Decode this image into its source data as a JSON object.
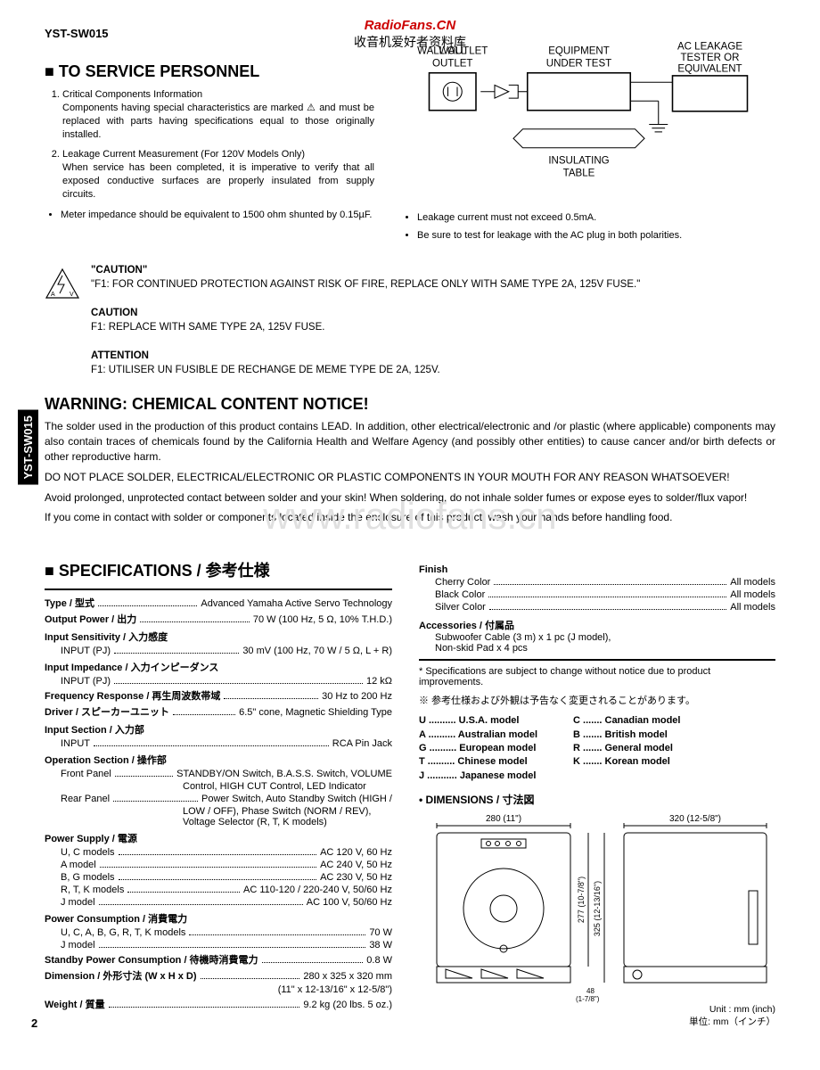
{
  "header": {
    "model": "YST-SW015",
    "brand_red": "RadioFans.CN",
    "brand_cn": "收音机爱好者资料库"
  },
  "side_tab": "YST-SW015",
  "section1": {
    "title": "TO SERVICE PERSONNEL",
    "items": [
      "Critical Components Information\nComponents having special characteristics are marked ⚠ and must be replaced with parts having specifications equal to those originally installed.",
      "Leakage Current Measurement (For 120V Models Only)\nWhen service has been completed, it is imperative to verify that all exposed conductive surfaces are properly insulated from supply circuits."
    ],
    "left_bullets": [
      "Meter impedance should be equivalent to 1500 ohm shunted by 0.15µF."
    ],
    "right_bullets": [
      "Leakage current must not exceed 0.5mA.",
      "Be sure to test for leakage with the AC plug in both polarities."
    ],
    "diagram": {
      "wall_outlet": "WALL\nOUTLET",
      "equipment": "EQUIPMENT\nUNDER TEST",
      "tester": "AC LEAKAGE\nTESTER OR\nEQUIVALENT",
      "table": "INSULATING\nTABLE"
    }
  },
  "caution": {
    "h1": "\"CAUTION\"",
    "l1": "\"F1: FOR CONTINUED PROTECTION AGAINST RISK OF FIRE, REPLACE ONLY WITH SAME TYPE 2A, 125V FUSE.\"",
    "h2": "CAUTION",
    "l2": "F1: REPLACE WITH SAME TYPE 2A, 125V FUSE.",
    "h3": "ATTENTION",
    "l3": "F1: UTILISER UN FUSIBLE DE RECHANGE DE MEME TYPE DE 2A, 125V."
  },
  "warning": {
    "title": "WARNING: CHEMICAL CONTENT NOTICE!",
    "p1": "The solder used in the production of this product contains LEAD.  In addition, other electrical/electronic and /or plastic (where applicable) components may also contain traces of chemicals found by the California Health and Welfare Agency (and possibly other entities) to cause cancer and/or birth defects or other reproductive harm.",
    "p2": "DO NOT PLACE SOLDER, ELECTRICAL/ELECTRONIC OR PLASTIC COMPONENTS IN YOUR MOUTH FOR ANY REASON WHATSOEVER!",
    "p3": "Avoid prolonged, unprotected contact between solder and your skin!  When soldering, do not inhale solder fumes or expose eyes to solder/flux vapor!",
    "p4": "If you come in contact with solder or components located inside the enclosure of this product, wash your hands before handling food."
  },
  "watermark": "www.radiofans.cn",
  "specs": {
    "title": "SPECIFICATIONS / 参考仕様",
    "left": [
      {
        "head": "Type / 型式",
        "value": "Advanced Yamaha Active Servo Technology"
      },
      {
        "head": "Output Power / 出力",
        "value": "70 W (100 Hz, 5 Ω, 10% T.H.D.)"
      },
      {
        "head": "Input Sensitivity / 入力感度"
      },
      {
        "sub": "INPUT (PJ)",
        "value": "30 mV (100 Hz, 70 W / 5 Ω, L + R)"
      },
      {
        "head": "Input Impedance / 入力インピーダンス"
      },
      {
        "sub": "INPUT (PJ)",
        "value": "12 kΩ"
      },
      {
        "head": "Frequency Response / 再生周波数帯域",
        "value": "30 Hz to 200 Hz"
      },
      {
        "head": "Driver / スピーカーユニット",
        "value": "6.5\" cone, Magnetic Shielding Type"
      },
      {
        "head": "Input Section / 入力部"
      },
      {
        "sub": "INPUT",
        "value": "RCA Pin Jack"
      },
      {
        "head": "Operation Section / 操作部"
      },
      {
        "sub": "Front Panel",
        "value": "STANDBY/ON Switch, B.A.S.S. Switch, VOLUME"
      },
      {
        "cont": "Control, HIGH CUT Control, LED Indicator"
      },
      {
        "sub": "Rear Panel",
        "value": "Power Switch, Auto Standby Switch (HIGH /"
      },
      {
        "cont": "LOW / OFF), Phase Switch (NORM / REV),"
      },
      {
        "cont": "Voltage Selector (R, T, K models)"
      },
      {
        "head": "Power Supply / 電源"
      },
      {
        "sub": "U, C models",
        "value": "AC 120 V, 60 Hz"
      },
      {
        "sub": "A model",
        "value": "AC 240 V, 50 Hz"
      },
      {
        "sub": "B, G models",
        "value": "AC 230 V, 50 Hz"
      },
      {
        "sub": "R, T, K models",
        "value": "AC 110-120 / 220-240 V, 50/60 Hz"
      },
      {
        "sub": "J model",
        "value": "AC 100 V, 50/60 Hz"
      },
      {
        "head": "Power Consumption / 消費電力"
      },
      {
        "sub": "U, C, A, B, G, R, T, K models",
        "value": "70 W"
      },
      {
        "sub": "J model",
        "value": "38 W"
      },
      {
        "head": "Standby Power Consumption / 待機時消費電力",
        "value": "0.8 W"
      },
      {
        "head": "Dimension / 外形寸法 (W x H x D)",
        "value": "280 x 325 x 320 mm"
      },
      {
        "cont2": "(11\" x 12-13/16\" x 12-5/8\")"
      },
      {
        "head": "Weight / 質量",
        "value": "9.2 kg (20 lbs. 5 oz.)"
      }
    ],
    "right": {
      "finish_head": "Finish",
      "finish": [
        {
          "label": "Cherry Color",
          "value": "All models"
        },
        {
          "label": "Black Color",
          "value": "All models"
        },
        {
          "label": "Silver Color",
          "value": "All models"
        }
      ],
      "acc_head": "Accessories / 付属品",
      "acc": [
        "Subwoofer Cable (3 m) x 1 pc (J model),",
        "Non-skid Pad x 4 pcs"
      ],
      "note_en": "* Specifications are subject to change without notice due to product improvements.",
      "note_jp": "※ 参考仕様および外観は予告なく変更されることがあります。",
      "codes_l": [
        "U .......... U.S.A. model",
        "A .......... Australian model",
        "G .......... European model",
        "T .......... Chinese model",
        "J ........... Japanese model"
      ],
      "codes_r": [
        "C ....... Canadian model",
        "B ....... British model",
        "R ....... General model",
        "K ....... Korean model"
      ],
      "dim_title": "• DIMENSIONS / 寸法図",
      "dim": {
        "w": "280 (11\")",
        "d": "320 (12-5/8\")",
        "h1": "277 (10-7/8\")",
        "h2": "325 (12-13/16\")",
        "h3": "48\n(1-7/8\")"
      },
      "unit_en": "Unit : mm (inch)",
      "unit_jp": "単位: mm（インチ）"
    }
  },
  "page_number": "2"
}
